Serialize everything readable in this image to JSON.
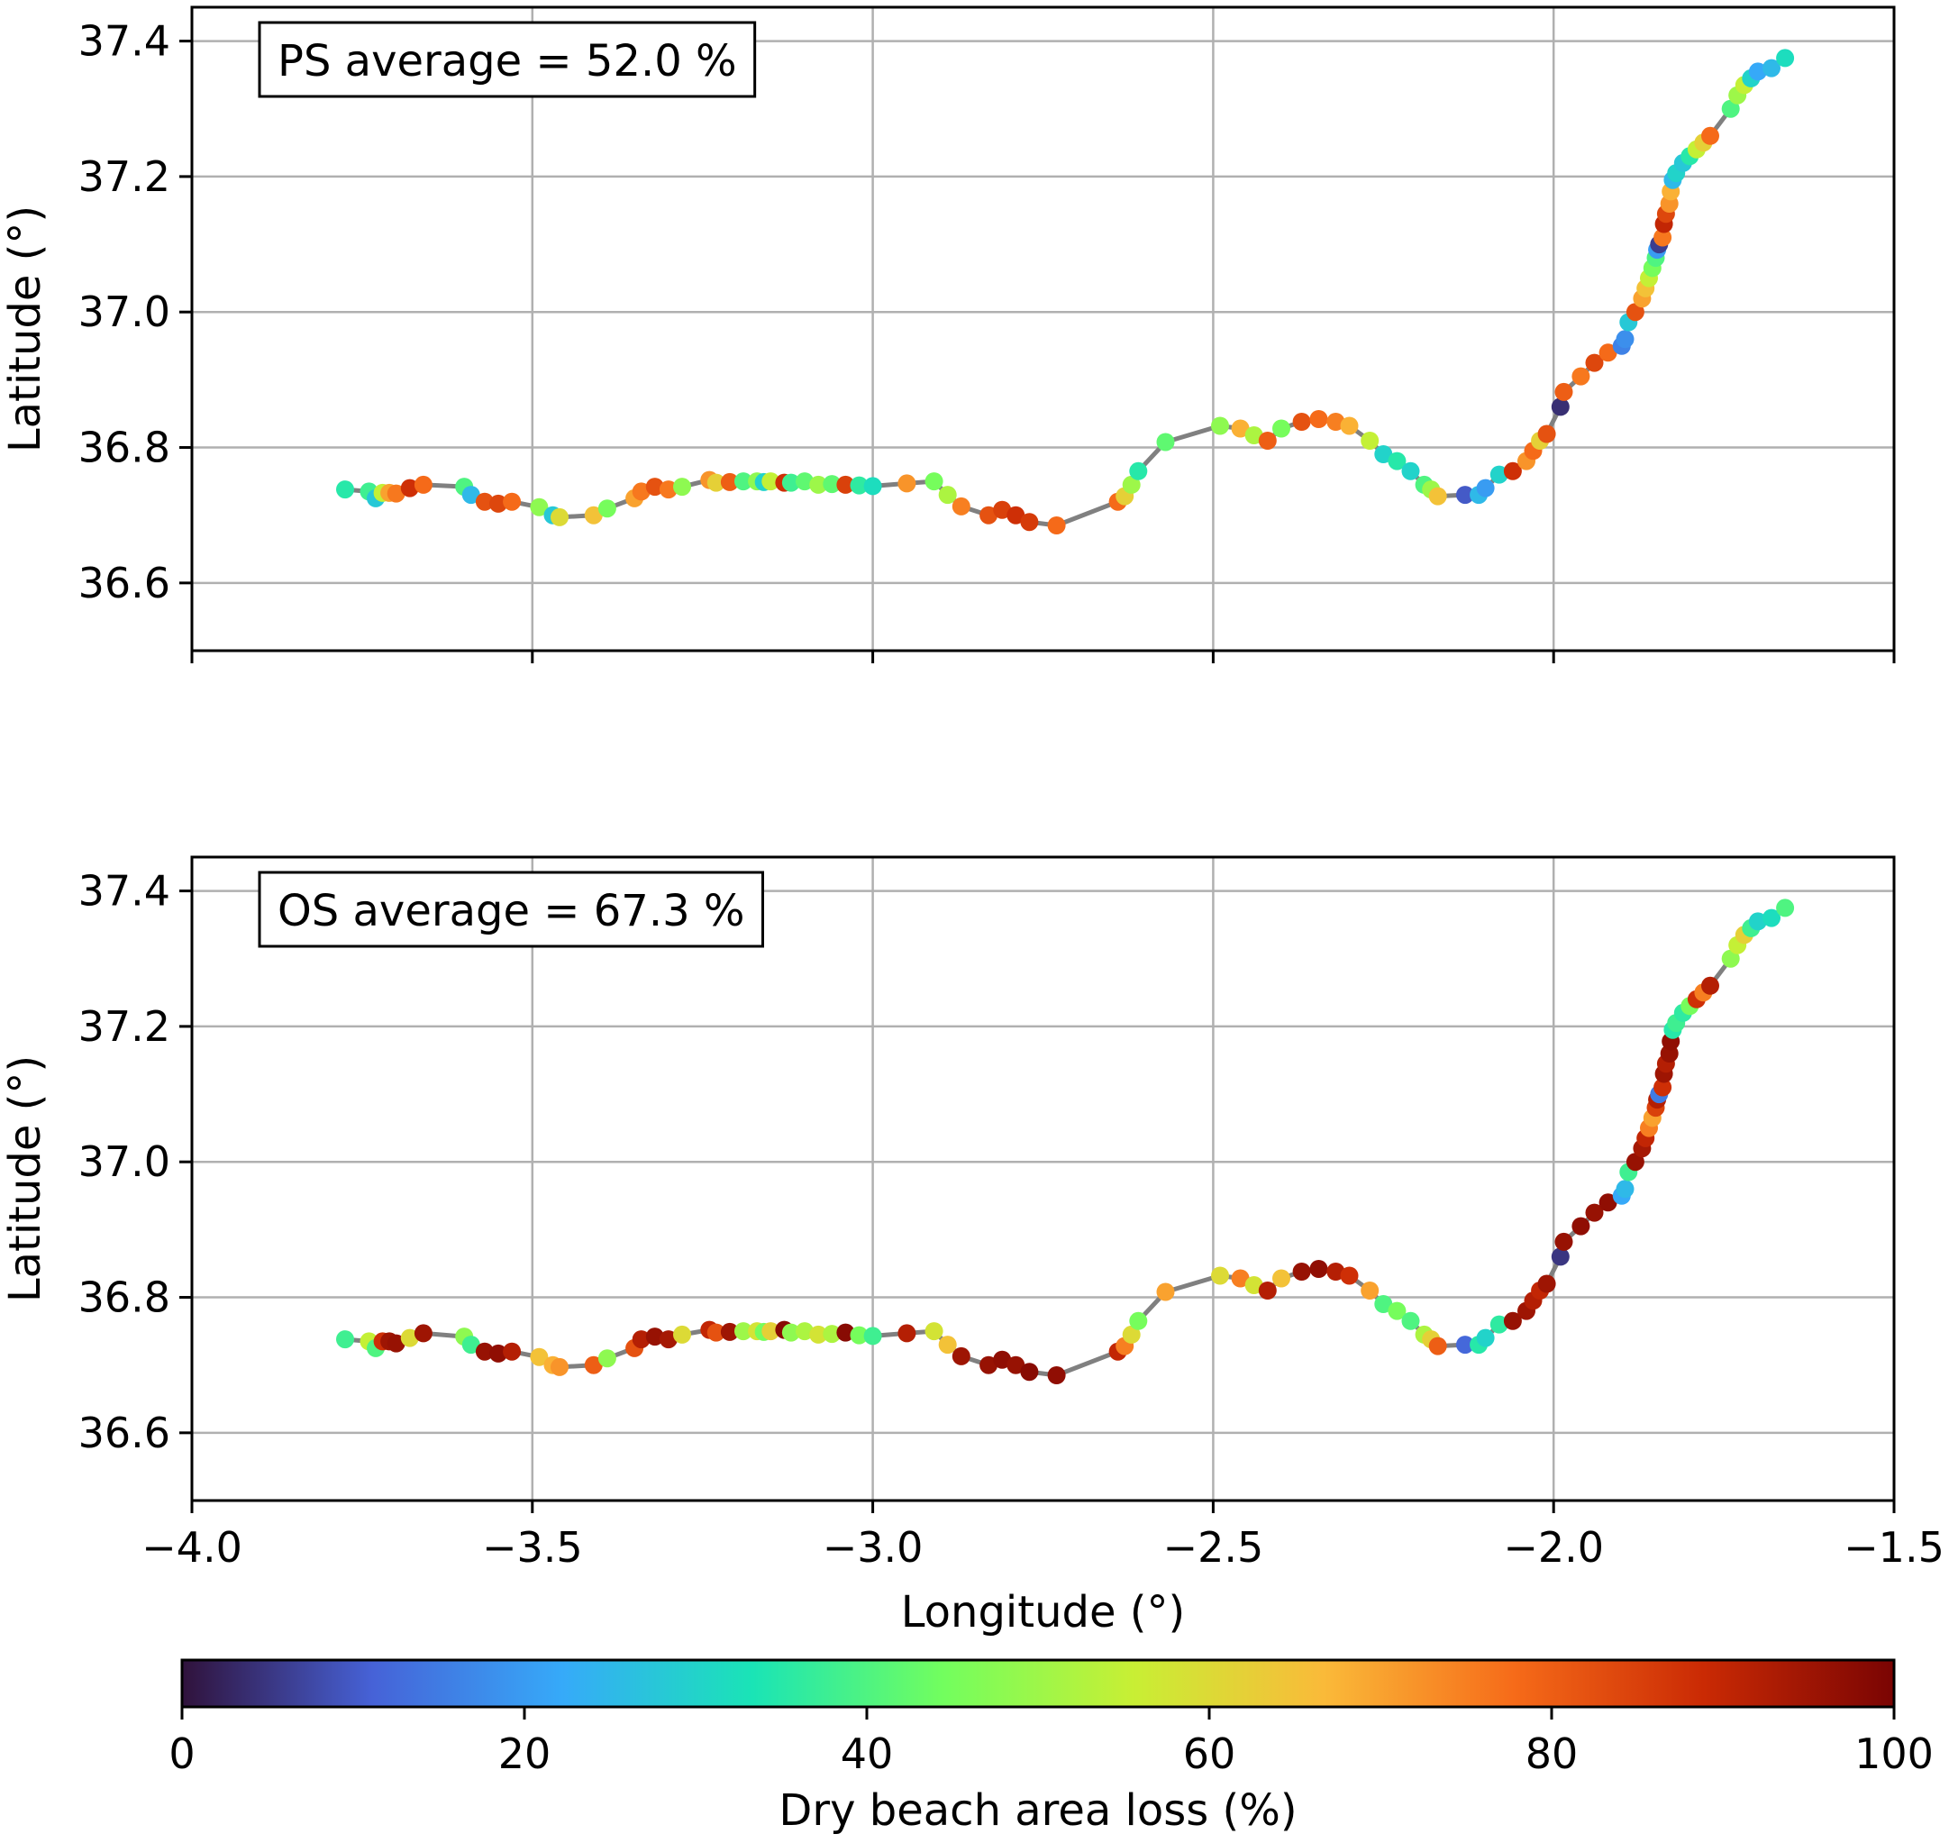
{
  "chart_data": [
    {
      "type": "scatter",
      "panel": "top",
      "annotation": "PS average = 52.0 %",
      "xlabel": "",
      "ylabel": "Latitude (°)",
      "xlim": [
        -4.0,
        -1.5
      ],
      "ylim": [
        36.5,
        37.45
      ],
      "yticks": [
        "36.6",
        "36.8",
        "37.0",
        "37.2",
        "37.4"
      ],
      "xticks_labeled": false,
      "grid": true,
      "points": [
        [
          -3.775,
          36.738,
          35
        ],
        [
          -3.74,
          36.735,
          38
        ],
        [
          -3.73,
          36.725,
          28
        ],
        [
          -3.72,
          36.733,
          55
        ],
        [
          -3.71,
          36.733,
          70
        ],
        [
          -3.7,
          36.732,
          76
        ],
        [
          -3.68,
          36.74,
          88
        ],
        [
          -3.66,
          36.745,
          78
        ],
        [
          -3.6,
          36.742,
          40
        ],
        [
          -3.59,
          36.73,
          25
        ],
        [
          -3.57,
          36.72,
          82
        ],
        [
          -3.55,
          36.717,
          84
        ],
        [
          -3.53,
          36.72,
          78
        ],
        [
          -3.49,
          36.712,
          48
        ],
        [
          -3.47,
          36.7,
          28
        ],
        [
          -3.46,
          36.697,
          60
        ],
        [
          -3.41,
          36.7,
          65
        ],
        [
          -3.39,
          36.71,
          45
        ],
        [
          -3.35,
          36.725,
          70
        ],
        [
          -3.34,
          36.735,
          76
        ],
        [
          -3.32,
          36.742,
          82
        ],
        [
          -3.3,
          36.738,
          76
        ],
        [
          -3.28,
          36.742,
          48
        ],
        [
          -3.24,
          36.752,
          72
        ],
        [
          -3.23,
          36.748,
          62
        ],
        [
          -3.21,
          36.749,
          80
        ],
        [
          -3.19,
          36.75,
          40
        ],
        [
          -3.17,
          36.75,
          48
        ],
        [
          -3.16,
          36.749,
          30
        ],
        [
          -3.15,
          36.75,
          55
        ],
        [
          -3.13,
          36.748,
          88
        ],
        [
          -3.12,
          36.748,
          38
        ],
        [
          -3.1,
          36.75,
          42
        ],
        [
          -3.08,
          36.745,
          50
        ],
        [
          -3.06,
          36.746,
          42
        ],
        [
          -3.04,
          36.745,
          85
        ],
        [
          -3.02,
          36.744,
          36
        ],
        [
          -3.0,
          36.743,
          32
        ],
        [
          -2.95,
          36.747,
          72
        ],
        [
          -2.91,
          36.75,
          45
        ],
        [
          -2.89,
          36.73,
          52
        ],
        [
          -2.87,
          36.713,
          75
        ],
        [
          -2.83,
          36.7,
          82
        ],
        [
          -2.81,
          36.708,
          85
        ],
        [
          -2.79,
          36.7,
          88
        ],
        [
          -2.77,
          36.69,
          86
        ],
        [
          -2.73,
          36.685,
          78
        ],
        [
          -2.64,
          36.72,
          78
        ],
        [
          -2.63,
          36.728,
          62
        ],
        [
          -2.62,
          36.745,
          50
        ],
        [
          -2.61,
          36.765,
          35
        ],
        [
          -2.57,
          36.808,
          42
        ],
        [
          -2.49,
          36.832,
          48
        ],
        [
          -2.46,
          36.828,
          68
        ],
        [
          -2.44,
          36.818,
          52
        ],
        [
          -2.42,
          36.81,
          80
        ],
        [
          -2.4,
          36.828,
          45
        ],
        [
          -2.37,
          36.838,
          82
        ],
        [
          -2.345,
          36.842,
          78
        ],
        [
          -2.32,
          36.838,
          75
        ],
        [
          -2.3,
          36.832,
          68
        ],
        [
          -2.27,
          36.81,
          55
        ],
        [
          -2.25,
          36.79,
          30
        ],
        [
          -2.23,
          36.78,
          35
        ],
        [
          -2.21,
          36.765,
          30
        ],
        [
          -2.19,
          36.745,
          40
        ],
        [
          -2.18,
          36.738,
          50
        ],
        [
          -2.17,
          36.728,
          65
        ],
        [
          -2.13,
          36.73,
          10
        ],
        [
          -2.11,
          36.73,
          25
        ],
        [
          -2.1,
          36.74,
          20
        ],
        [
          -2.08,
          36.76,
          30
        ],
        [
          -2.06,
          36.765,
          88
        ],
        [
          -2.04,
          36.78,
          72
        ],
        [
          -2.03,
          36.795,
          78
        ],
        [
          -2.02,
          36.81,
          62
        ],
        [
          -2.01,
          36.82,
          82
        ],
        [
          -1.99,
          36.86,
          4
        ],
        [
          -1.985,
          36.882,
          80
        ],
        [
          -1.96,
          36.905,
          76
        ],
        [
          -1.94,
          36.925,
          84
        ],
        [
          -1.92,
          36.94,
          78
        ],
        [
          -1.9,
          36.95,
          16
        ],
        [
          -1.895,
          36.96,
          18
        ],
        [
          -1.89,
          36.985,
          28
        ],
        [
          -1.88,
          37.0,
          82
        ],
        [
          -1.87,
          37.02,
          70
        ],
        [
          -1.865,
          37.035,
          65
        ],
        [
          -1.86,
          37.05,
          55
        ],
        [
          -1.855,
          37.065,
          45
        ],
        [
          -1.85,
          37.08,
          40
        ],
        [
          -1.848,
          37.092,
          20
        ],
        [
          -1.845,
          37.1,
          6
        ],
        [
          -1.84,
          37.11,
          76
        ],
        [
          -1.838,
          37.13,
          90
        ],
        [
          -1.835,
          37.145,
          84
        ],
        [
          -1.83,
          37.16,
          72
        ],
        [
          -1.828,
          37.178,
          68
        ],
        [
          -1.825,
          37.195,
          25
        ],
        [
          -1.82,
          37.205,
          30
        ],
        [
          -1.81,
          37.22,
          28
        ],
        [
          -1.8,
          37.23,
          35
        ],
        [
          -1.79,
          37.24,
          55
        ],
        [
          -1.78,
          37.25,
          62
        ],
        [
          -1.77,
          37.26,
          78
        ],
        [
          -1.74,
          37.3,
          40
        ],
        [
          -1.73,
          37.32,
          50
        ],
        [
          -1.72,
          37.335,
          55
        ],
        [
          -1.71,
          37.345,
          30
        ],
        [
          -1.7,
          37.355,
          22
        ],
        [
          -1.68,
          37.36,
          25
        ],
        [
          -1.66,
          37.375,
          32
        ]
      ]
    },
    {
      "type": "scatter",
      "panel": "bottom",
      "annotation": "OS average = 67.3 %",
      "xlabel": "Longitude (°)",
      "ylabel": "Latitude (°)",
      "xlim": [
        -4.0,
        -1.5
      ],
      "ylim": [
        36.5,
        37.45
      ],
      "xticks": [
        "−4.0",
        "−3.5",
        "−3.0",
        "−2.5",
        "−2.0",
        "−1.5"
      ],
      "yticks": [
        "36.6",
        "36.8",
        "37.0",
        "37.2",
        "37.4"
      ],
      "grid": true,
      "points": [
        [
          -3.775,
          36.738,
          38
        ],
        [
          -3.74,
          36.735,
          55
        ],
        [
          -3.73,
          36.725,
          40
        ],
        [
          -3.72,
          36.735,
          88
        ],
        [
          -3.71,
          36.735,
          95
        ],
        [
          -3.7,
          36.732,
          96
        ],
        [
          -3.68,
          36.74,
          60
        ],
        [
          -3.66,
          36.747,
          95
        ],
        [
          -3.6,
          36.742,
          48
        ],
        [
          -3.59,
          36.73,
          38
        ],
        [
          -3.57,
          36.72,
          96
        ],
        [
          -3.55,
          36.717,
          97
        ],
        [
          -3.53,
          36.72,
          92
        ],
        [
          -3.49,
          36.712,
          65
        ],
        [
          -3.47,
          36.7,
          68
        ],
        [
          -3.46,
          36.697,
          72
        ],
        [
          -3.41,
          36.7,
          80
        ],
        [
          -3.39,
          36.71,
          48
        ],
        [
          -3.35,
          36.725,
          82
        ],
        [
          -3.34,
          36.738,
          92
        ],
        [
          -3.32,
          36.742,
          96
        ],
        [
          -3.3,
          36.738,
          94
        ],
        [
          -3.28,
          36.745,
          60
        ],
        [
          -3.24,
          36.752,
          90
        ],
        [
          -3.23,
          36.748,
          82
        ],
        [
          -3.21,
          36.749,
          95
        ],
        [
          -3.19,
          36.75,
          50
        ],
        [
          -3.17,
          36.75,
          58
        ],
        [
          -3.16,
          36.749,
          45
        ],
        [
          -3.15,
          36.75,
          62
        ],
        [
          -3.13,
          36.752,
          98
        ],
        [
          -3.12,
          36.748,
          48
        ],
        [
          -3.1,
          36.75,
          52
        ],
        [
          -3.08,
          36.745,
          58
        ],
        [
          -3.06,
          36.746,
          52
        ],
        [
          -3.04,
          36.748,
          98
        ],
        [
          -3.02,
          36.744,
          45
        ],
        [
          -3.0,
          36.743,
          38
        ],
        [
          -2.95,
          36.747,
          92
        ],
        [
          -2.91,
          36.75,
          58
        ],
        [
          -2.89,
          36.73,
          65
        ],
        [
          -2.87,
          36.713,
          95
        ],
        [
          -2.83,
          36.7,
          96
        ],
        [
          -2.81,
          36.708,
          97
        ],
        [
          -2.79,
          36.7,
          96
        ],
        [
          -2.77,
          36.69,
          98
        ],
        [
          -2.73,
          36.685,
          97
        ],
        [
          -2.64,
          36.72,
          90
        ],
        [
          -2.63,
          36.728,
          75
        ],
        [
          -2.62,
          36.745,
          60
        ],
        [
          -2.61,
          36.765,
          45
        ],
        [
          -2.57,
          36.808,
          70
        ],
        [
          -2.49,
          36.832,
          60
        ],
        [
          -2.46,
          36.828,
          75
        ],
        [
          -2.44,
          36.818,
          58
        ],
        [
          -2.42,
          36.81,
          92
        ],
        [
          -2.4,
          36.828,
          65
        ],
        [
          -2.37,
          36.838,
          96
        ],
        [
          -2.345,
          36.842,
          97
        ],
        [
          -2.32,
          36.838,
          92
        ],
        [
          -2.3,
          36.832,
          88
        ],
        [
          -2.27,
          36.81,
          70
        ],
        [
          -2.25,
          36.79,
          40
        ],
        [
          -2.23,
          36.78,
          45
        ],
        [
          -2.21,
          36.765,
          40
        ],
        [
          -2.19,
          36.745,
          52
        ],
        [
          -2.18,
          36.738,
          62
        ],
        [
          -2.17,
          36.728,
          80
        ],
        [
          -2.13,
          36.73,
          12
        ],
        [
          -2.11,
          36.73,
          35
        ],
        [
          -2.1,
          36.74,
          30
        ],
        [
          -2.08,
          36.76,
          36
        ],
        [
          -2.06,
          36.765,
          96
        ],
        [
          -2.04,
          36.78,
          95
        ],
        [
          -2.03,
          36.795,
          92
        ],
        [
          -2.02,
          36.81,
          90
        ],
        [
          -2.01,
          36.82,
          95
        ],
        [
          -1.99,
          36.86,
          5
        ],
        [
          -1.985,
          36.882,
          96
        ],
        [
          -1.96,
          36.905,
          97
        ],
        [
          -1.94,
          36.925,
          96
        ],
        [
          -1.92,
          36.94,
          97
        ],
        [
          -1.9,
          36.95,
          22
        ],
        [
          -1.895,
          36.96,
          25
        ],
        [
          -1.89,
          36.985,
          38
        ],
        [
          -1.88,
          37.0,
          96
        ],
        [
          -1.87,
          37.02,
          94
        ],
        [
          -1.865,
          37.035,
          90
        ],
        [
          -1.86,
          37.05,
          75
        ],
        [
          -1.855,
          37.065,
          70
        ],
        [
          -1.85,
          37.08,
          85
        ],
        [
          -1.848,
          37.092,
          92
        ],
        [
          -1.845,
          37.1,
          15
        ],
        [
          -1.84,
          37.11,
          88
        ],
        [
          -1.838,
          37.13,
          95
        ],
        [
          -1.835,
          37.145,
          92
        ],
        [
          -1.83,
          37.16,
          96
        ],
        [
          -1.828,
          37.178,
          97
        ],
        [
          -1.825,
          37.195,
          35
        ],
        [
          -1.82,
          37.205,
          38
        ],
        [
          -1.81,
          37.22,
          36
        ],
        [
          -1.8,
          37.23,
          45
        ],
        [
          -1.79,
          37.24,
          88
        ],
        [
          -1.78,
          37.25,
          75
        ],
        [
          -1.77,
          37.26,
          92
        ],
        [
          -1.74,
          37.3,
          48
        ],
        [
          -1.73,
          37.32,
          55
        ],
        [
          -1.72,
          37.335,
          62
        ],
        [
          -1.71,
          37.345,
          38
        ],
        [
          -1.7,
          37.355,
          30
        ],
        [
          -1.68,
          37.36,
          32
        ],
        [
          -1.66,
          37.375,
          40
        ]
      ]
    }
  ],
  "colorbar": {
    "label": "Dry beach area loss (%)",
    "range": [
      0,
      100
    ],
    "ticks": [
      "0",
      "20",
      "40",
      "60",
      "80",
      "100"
    ],
    "colormap": "turbo",
    "stops": [
      "#30123b",
      "#4662d7",
      "#36aaf9",
      "#1ae4b6",
      "#72fe5e",
      "#c8ef34",
      "#faba39",
      "#f66b19",
      "#ca2a04",
      "#7a0403"
    ]
  },
  "colors": {
    "coastline": "#808080",
    "grid": "#b0b0b0"
  }
}
